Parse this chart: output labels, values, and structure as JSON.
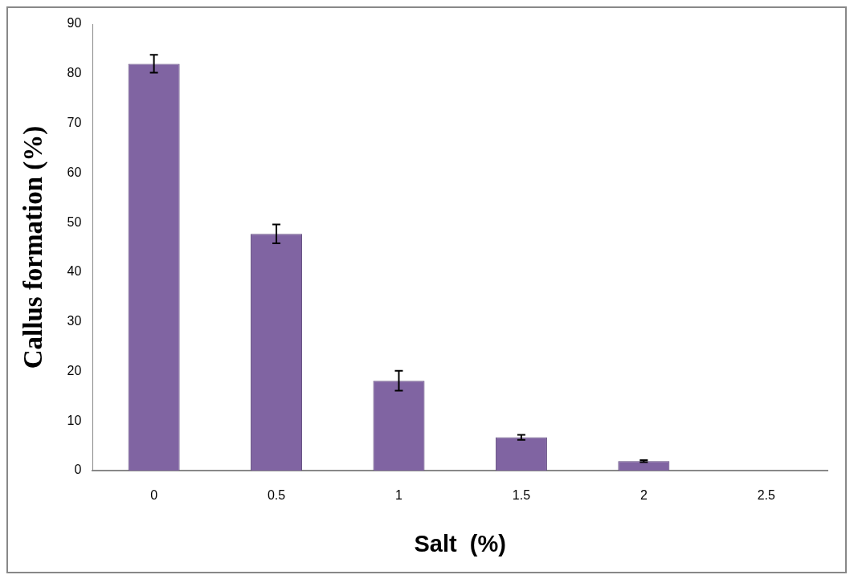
{
  "chart_data": {
    "type": "bar",
    "xlabel": "Salt  (%)",
    "ylabel": "Callus formation (%)",
    "categories": [
      "0",
      "0.5",
      "1",
      "1.5",
      "2",
      "2.5"
    ],
    "values": [
      82,
      47.7,
      18.1,
      6.7,
      1.9,
      0
    ],
    "errors": [
      1.8,
      1.9,
      2,
      0.5,
      0.2,
      null
    ],
    "color": "#8064a2",
    "ylim": [
      0,
      90
    ],
    "yticks": [
      0,
      10,
      20,
      30,
      40,
      50,
      60,
      70,
      80,
      90
    ],
    "grid": false,
    "legend": false
  }
}
